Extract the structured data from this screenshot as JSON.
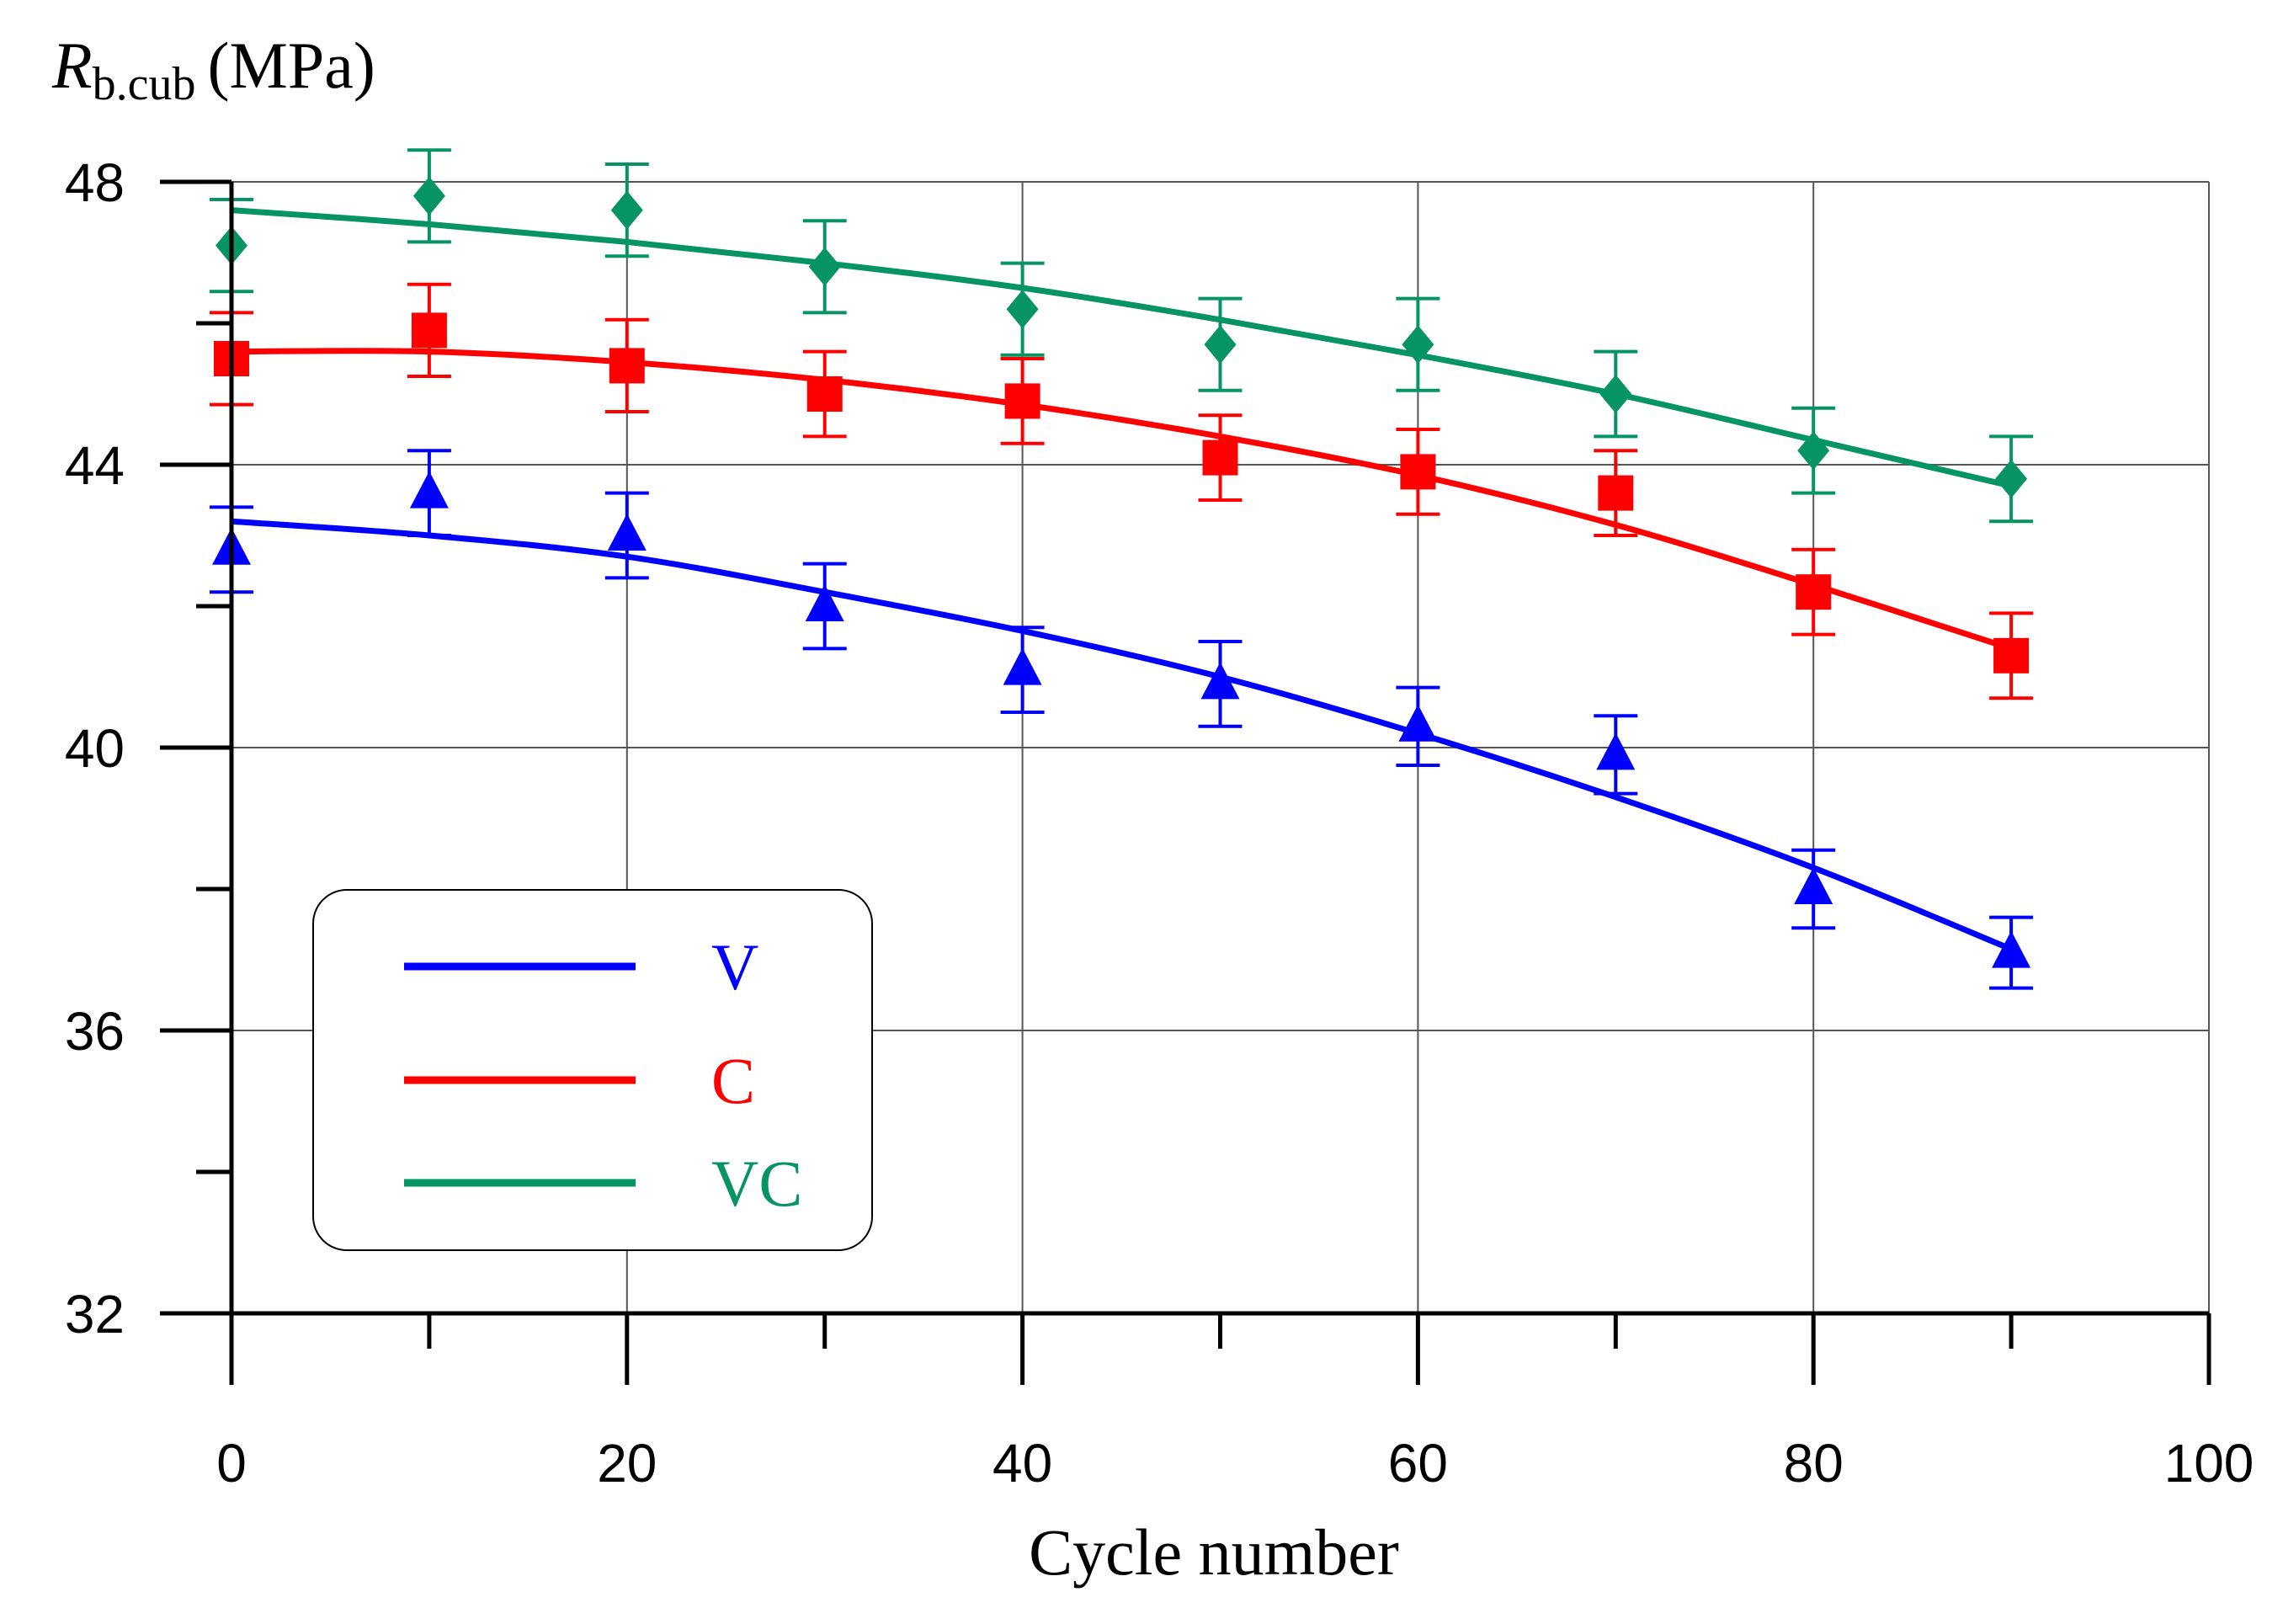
{
  "chart_data": {
    "type": "line",
    "title": "",
    "ylabel_main": "R",
    "ylabel_sub": "b.cub",
    "ylabel_unit": "(MPa)",
    "xlabel": "Cycle number",
    "xlim": [
      0,
      100
    ],
    "ylim": [
      32,
      48
    ],
    "xticks": [
      0,
      20,
      40,
      60,
      80,
      100
    ],
    "xticks_minor": [
      10,
      30,
      50,
      70,
      90
    ],
    "yticks": [
      32,
      36,
      40,
      44,
      48
    ],
    "yticks_minor": [
      34,
      38,
      42,
      46
    ],
    "x": [
      0,
      10,
      20,
      30,
      40,
      50,
      60,
      70,
      80,
      90
    ],
    "grid": true,
    "legend_position": "bottom-left",
    "series": [
      {
        "name": "V",
        "color": "#0000ff",
        "marker": "triangle",
        "values": [
          42.8,
          43.6,
          43.0,
          42.0,
          41.1,
          40.9,
          40.3,
          39.9,
          38.0,
          37.1
        ],
        "error": [
          0.6,
          0.6,
          0.6,
          0.6,
          0.6,
          0.6,
          0.55,
          0.55,
          0.55,
          0.5
        ],
        "fit": [
          43.2,
          43.0,
          42.7,
          42.2,
          41.65,
          41.0,
          40.2,
          39.3,
          38.3,
          37.15
        ]
      },
      {
        "name": "C",
        "color": "#ff0000",
        "marker": "square",
        "values": [
          45.5,
          45.9,
          45.4,
          45.0,
          44.9,
          44.1,
          43.9,
          43.6,
          42.2,
          41.3
        ],
        "error": [
          0.65,
          0.65,
          0.65,
          0.6,
          0.6,
          0.6,
          0.6,
          0.6,
          0.6,
          0.6
        ],
        "fit": [
          45.6,
          45.6,
          45.45,
          45.2,
          44.85,
          44.4,
          43.85,
          43.15,
          42.3,
          41.4
        ]
      },
      {
        "name": "VC",
        "color": "#079464",
        "marker": "diamond",
        "values": [
          47.1,
          47.8,
          47.6,
          46.8,
          46.2,
          45.7,
          45.7,
          45.0,
          44.2,
          43.8
        ],
        "error": [
          0.65,
          0.65,
          0.65,
          0.65,
          0.65,
          0.65,
          0.65,
          0.6,
          0.6,
          0.6
        ],
        "fit": [
          47.6,
          47.4,
          47.15,
          46.85,
          46.5,
          46.05,
          45.55,
          45.0,
          44.35,
          43.7
        ]
      }
    ]
  }
}
